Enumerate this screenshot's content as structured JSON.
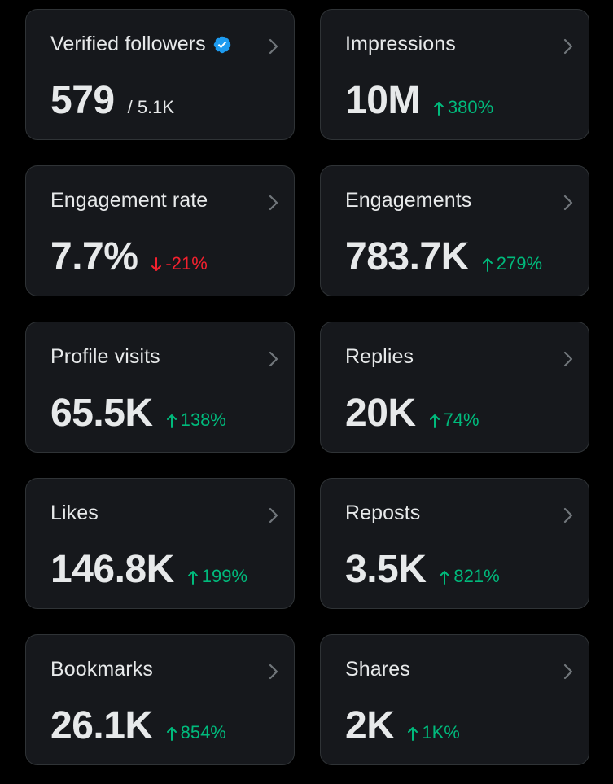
{
  "cards": [
    {
      "title": "Verified followers",
      "value": "579",
      "sub": "/ 5.1K"
    },
    {
      "title": "Impressions",
      "value": "10M",
      "delta": "380%",
      "dir": "up"
    },
    {
      "title": "Engagement rate",
      "value": "7.7%",
      "delta": "-21%",
      "dir": "down"
    },
    {
      "title": "Engagements",
      "value": "783.7K",
      "delta": "279%",
      "dir": "up"
    },
    {
      "title": "Profile visits",
      "value": "65.5K",
      "delta": "138%",
      "dir": "up"
    },
    {
      "title": "Replies",
      "value": "20K",
      "delta": "74%",
      "dir": "up"
    },
    {
      "title": "Likes",
      "value": "146.8K",
      "delta": "199%",
      "dir": "up"
    },
    {
      "title": "Reposts",
      "value": "3.5K",
      "delta": "821%",
      "dir": "up"
    },
    {
      "title": "Bookmarks",
      "value": "26.1K",
      "delta": "854%",
      "dir": "up"
    },
    {
      "title": "Shares",
      "value": "2K",
      "delta": "1K%",
      "dir": "up"
    }
  ],
  "icons": {
    "verified": "verified-badge-icon",
    "chevron": "chevron-right-icon",
    "up": "arrow-up-icon",
    "down": "arrow-down-icon"
  },
  "colors": {
    "background": "#000000",
    "card": "#16181c",
    "border": "#2f3336",
    "text": "#e7e9ea",
    "up": "#00ba7c",
    "down": "#f4212e",
    "verified": "#1d9bf0",
    "chevron": "#71767b"
  }
}
